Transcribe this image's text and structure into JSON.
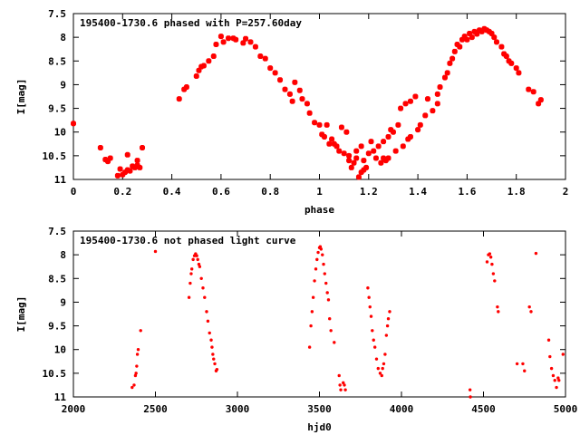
{
  "chart_data": [
    {
      "type": "scatter",
      "title": "195400-1730.6 phased with P=257.60day",
      "xlabel": "phase",
      "ylabel": "I[mag]",
      "xlim": [
        0,
        2
      ],
      "ylim": [
        11,
        7.5
      ],
      "y_inverted": true,
      "grid": false,
      "legend": "none",
      "color": "#ff0000",
      "x_ticks": [
        "0",
        "0.2",
        "0.4",
        "0.6",
        "0.8",
        "1",
        "1.2",
        "1.4",
        "1.6",
        "1.8",
        "2"
      ],
      "y_ticks": [
        "7.5",
        "8",
        "8.5",
        "9",
        "9.5",
        "10",
        "10.5",
        "11"
      ],
      "series": [
        {
          "points": [
            [
              0.0,
              9.82
            ],
            [
              0.11,
              10.33
            ],
            [
              0.13,
              10.58
            ],
            [
              0.14,
              10.62
            ],
            [
              0.15,
              10.55
            ],
            [
              0.18,
              10.92
            ],
            [
              0.19,
              10.78
            ],
            [
              0.2,
              10.9
            ],
            [
              0.21,
              10.85
            ],
            [
              0.22,
              10.8
            ],
            [
              0.22,
              10.48
            ],
            [
              0.23,
              10.82
            ],
            [
              0.24,
              10.72
            ],
            [
              0.25,
              10.75
            ],
            [
              0.26,
              10.6
            ],
            [
              0.26,
              10.7
            ],
            [
              0.27,
              10.75
            ],
            [
              0.28,
              10.33
            ],
            [
              0.43,
              9.3
            ],
            [
              0.45,
              9.1
            ],
            [
              0.46,
              9.05
            ],
            [
              0.5,
              8.82
            ],
            [
              0.51,
              8.7
            ],
            [
              0.52,
              8.62
            ],
            [
              0.53,
              8.6
            ],
            [
              0.55,
              8.5
            ],
            [
              0.57,
              8.4
            ],
            [
              0.58,
              8.15
            ],
            [
              0.6,
              7.98
            ],
            [
              0.61,
              8.1
            ],
            [
              0.63,
              8.02
            ],
            [
              0.65,
              8.02
            ],
            [
              0.66,
              8.05
            ],
            [
              0.69,
              8.12
            ],
            [
              0.7,
              8.03
            ],
            [
              0.72,
              8.1
            ],
            [
              0.74,
              8.2
            ],
            [
              0.76,
              8.4
            ],
            [
              0.78,
              8.45
            ],
            [
              0.8,
              8.65
            ],
            [
              0.82,
              8.75
            ],
            [
              0.84,
              8.9
            ],
            [
              0.86,
              9.1
            ],
            [
              0.88,
              9.2
            ],
            [
              0.89,
              9.35
            ],
            [
              0.9,
              8.95
            ],
            [
              0.92,
              9.12
            ],
            [
              0.93,
              9.3
            ],
            [
              0.95,
              9.4
            ],
            [
              0.96,
              9.6
            ],
            [
              0.98,
              9.8
            ],
            [
              1.0,
              9.85
            ],
            [
              1.01,
              10.05
            ],
            [
              1.02,
              10.1
            ],
            [
              1.03,
              9.85
            ],
            [
              1.04,
              10.25
            ],
            [
              1.05,
              10.15
            ],
            [
              1.06,
              10.25
            ],
            [
              1.07,
              10.3
            ],
            [
              1.08,
              10.4
            ],
            [
              1.09,
              9.9
            ],
            [
              1.1,
              10.45
            ],
            [
              1.11,
              10.0
            ],
            [
              1.12,
              10.6
            ],
            [
              1.12,
              10.5
            ],
            [
              1.13,
              10.75
            ],
            [
              1.14,
              10.65
            ],
            [
              1.15,
              10.55
            ],
            [
              1.15,
              10.4
            ],
            [
              1.16,
              10.95
            ],
            [
              1.17,
              10.3
            ],
            [
              1.17,
              10.85
            ],
            [
              1.18,
              10.8
            ],
            [
              1.18,
              10.6
            ],
            [
              1.19,
              10.75
            ],
            [
              1.2,
              10.45
            ],
            [
              1.21,
              10.2
            ],
            [
              1.22,
              10.4
            ],
            [
              1.23,
              10.55
            ],
            [
              1.24,
              10.3
            ],
            [
              1.25,
              10.65
            ],
            [
              1.26,
              10.2
            ],
            [
              1.26,
              10.55
            ],
            [
              1.27,
              10.6
            ],
            [
              1.28,
              10.1
            ],
            [
              1.28,
              10.55
            ],
            [
              1.29,
              9.95
            ],
            [
              1.3,
              10.0
            ],
            [
              1.31,
              10.4
            ],
            [
              1.32,
              9.85
            ],
            [
              1.33,
              9.5
            ],
            [
              1.34,
              10.3
            ],
            [
              1.35,
              9.4
            ],
            [
              1.36,
              10.15
            ],
            [
              1.37,
              9.35
            ],
            [
              1.37,
              10.1
            ],
            [
              1.39,
              9.25
            ],
            [
              1.4,
              9.95
            ],
            [
              1.41,
              9.85
            ],
            [
              1.43,
              9.65
            ],
            [
              1.44,
              9.3
            ],
            [
              1.46,
              9.55
            ],
            [
              1.48,
              9.2
            ],
            [
              1.48,
              9.4
            ],
            [
              1.49,
              9.05
            ],
            [
              1.51,
              8.85
            ],
            [
              1.52,
              8.75
            ],
            [
              1.53,
              8.55
            ],
            [
              1.54,
              8.45
            ],
            [
              1.55,
              8.3
            ],
            [
              1.56,
              8.15
            ],
            [
              1.57,
              8.2
            ],
            [
              1.58,
              8.05
            ],
            [
              1.59,
              7.98
            ],
            [
              1.6,
              8.05
            ],
            [
              1.61,
              7.92
            ],
            [
              1.62,
              8.0
            ],
            [
              1.63,
              7.88
            ],
            [
              1.64,
              7.93
            ],
            [
              1.65,
              7.85
            ],
            [
              1.66,
              7.88
            ],
            [
              1.67,
              7.82
            ],
            [
              1.68,
              7.85
            ],
            [
              1.69,
              7.88
            ],
            [
              1.7,
              7.92
            ],
            [
              1.71,
              8.0
            ],
            [
              1.72,
              8.1
            ],
            [
              1.74,
              8.2
            ],
            [
              1.75,
              8.35
            ],
            [
              1.76,
              8.4
            ],
            [
              1.77,
              8.5
            ],
            [
              1.78,
              8.55
            ],
            [
              1.8,
              8.65
            ],
            [
              1.81,
              8.75
            ],
            [
              1.85,
              9.1
            ],
            [
              1.87,
              9.15
            ],
            [
              1.89,
              9.4
            ],
            [
              1.9,
              9.32
            ]
          ]
        }
      ]
    },
    {
      "type": "scatter",
      "title": "195400-1730.6 not phased light curve",
      "xlabel": "hjd0",
      "ylabel": "I[mag]",
      "xlim": [
        2000,
        5000
      ],
      "ylim": [
        11,
        7.5
      ],
      "y_inverted": true,
      "grid": false,
      "legend": "none",
      "color": "#ff0000",
      "x_ticks": [
        "2000",
        "2500",
        "3000",
        "3500",
        "4000",
        "4500",
        "5000"
      ],
      "y_ticks": [
        "7.5",
        "8",
        "8.5",
        "9",
        "9.5",
        "10",
        "10.5",
        "11"
      ],
      "series": [
        {
          "points": [
            [
              2358,
              10.8
            ],
            [
              2370,
              10.75
            ],
            [
              2378,
              10.55
            ],
            [
              2382,
              10.5
            ],
            [
              2386,
              10.35
            ],
            [
              2390,
              10.1
            ],
            [
              2395,
              10.0
            ],
            [
              2410,
              9.6
            ],
            [
              2500,
              7.93
            ],
            [
              2705,
              8.9
            ],
            [
              2712,
              8.6
            ],
            [
              2718,
              8.4
            ],
            [
              2722,
              8.3
            ],
            [
              2730,
              8.1
            ],
            [
              2738,
              8.02
            ],
            [
              2745,
              7.98
            ],
            [
              2752,
              8.02
            ],
            [
              2758,
              8.1
            ],
            [
              2765,
              8.2
            ],
            [
              2770,
              8.25
            ],
            [
              2780,
              8.5
            ],
            [
              2790,
              8.7
            ],
            [
              2800,
              8.9
            ],
            [
              2812,
              9.2
            ],
            [
              2820,
              9.4
            ],
            [
              2830,
              9.65
            ],
            [
              2840,
              9.8
            ],
            [
              2845,
              9.95
            ],
            [
              2850,
              10.1
            ],
            [
              2855,
              10.2
            ],
            [
              2862,
              10.3
            ],
            [
              2870,
              10.45
            ],
            [
              2875,
              10.42
            ],
            [
              3440,
              9.95
            ],
            [
              3448,
              9.5
            ],
            [
              3455,
              9.2
            ],
            [
              3462,
              8.9
            ],
            [
              3470,
              8.55
            ],
            [
              3478,
              8.3
            ],
            [
              3485,
              8.1
            ],
            [
              3492,
              7.95
            ],
            [
              3500,
              7.85
            ],
            [
              3505,
              7.83
            ],
            [
              3510,
              7.88
            ],
            [
              3518,
              8.0
            ],
            [
              3525,
              8.2
            ],
            [
              3532,
              8.4
            ],
            [
              3540,
              8.6
            ],
            [
              3548,
              8.8
            ],
            [
              3555,
              8.95
            ],
            [
              3562,
              9.35
            ],
            [
              3570,
              9.6
            ],
            [
              3590,
              9.85
            ],
            [
              3620,
              10.55
            ],
            [
              3625,
              10.75
            ],
            [
              3630,
              10.85
            ],
            [
              3645,
              10.7
            ],
            [
              3652,
              10.75
            ],
            [
              3658,
              10.85
            ],
            [
              3795,
              8.7
            ],
            [
              3802,
              8.9
            ],
            [
              3808,
              9.1
            ],
            [
              3815,
              9.3
            ],
            [
              3822,
              9.6
            ],
            [
              3830,
              9.8
            ],
            [
              3838,
              9.95
            ],
            [
              3848,
              10.2
            ],
            [
              3858,
              10.4
            ],
            [
              3870,
              10.5
            ],
            [
              3880,
              10.55
            ],
            [
              3885,
              10.4
            ],
            [
              3892,
              10.3
            ],
            [
              3900,
              10.1
            ],
            [
              3908,
              9.7
            ],
            [
              3915,
              9.5
            ],
            [
              3920,
              9.35
            ],
            [
              3928,
              9.2
            ],
            [
              4418,
              10.85
            ],
            [
              4420,
              11.0
            ],
            [
              4522,
              8.15
            ],
            [
              4530,
              8.0
            ],
            [
              4538,
              7.98
            ],
            [
              4545,
              8.05
            ],
            [
              4552,
              8.2
            ],
            [
              4560,
              8.4
            ],
            [
              4568,
              8.55
            ],
            [
              4585,
              9.1
            ],
            [
              4590,
              9.2
            ],
            [
              4705,
              10.3
            ],
            [
              4740,
              10.3
            ],
            [
              4750,
              10.45
            ],
            [
              4780,
              9.1
            ],
            [
              4790,
              9.2
            ],
            [
              4820,
              7.97
            ],
            [
              4898,
              9.8
            ],
            [
              4905,
              10.15
            ],
            [
              4915,
              10.4
            ],
            [
              4925,
              10.55
            ],
            [
              4935,
              10.65
            ],
            [
              4945,
              10.8
            ],
            [
              4955,
              10.6
            ],
            [
              4960,
              10.65
            ],
            [
              4985,
              10.1
            ]
          ]
        }
      ]
    }
  ]
}
